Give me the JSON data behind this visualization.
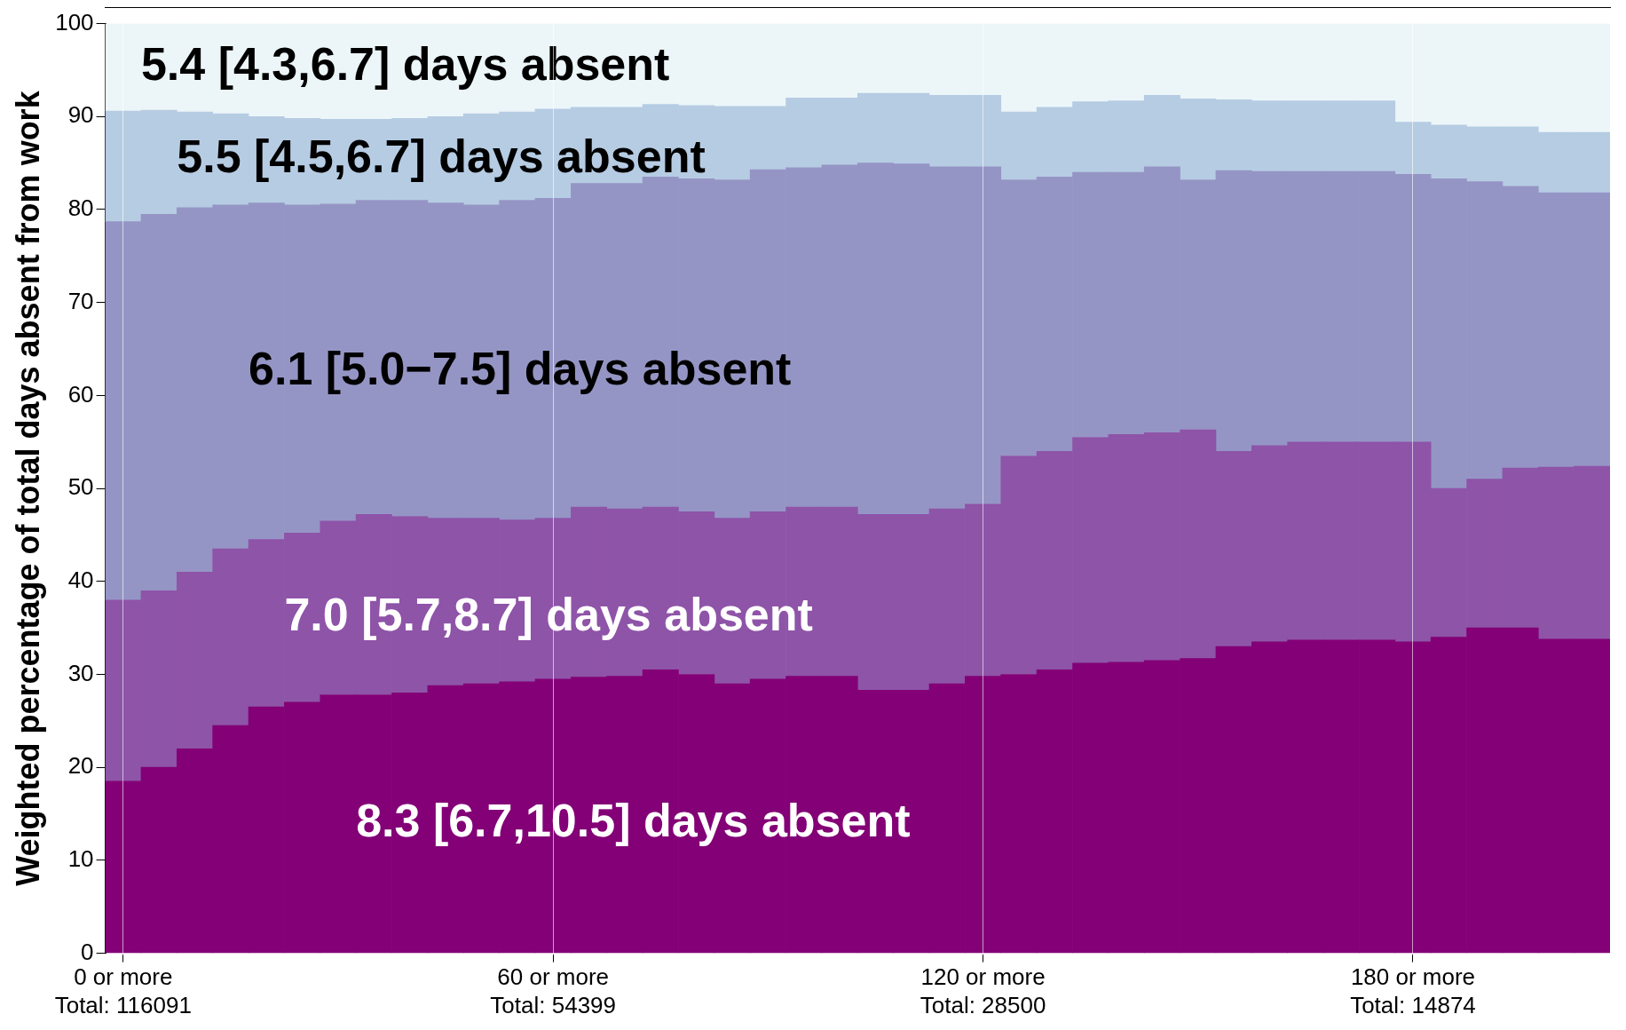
{
  "chart_data": {
    "type": "bar",
    "stacked": true,
    "ylabel": "Weighted percentage of total days absent from work",
    "grid": "x",
    "categories": [
      "0 or more\nTotal: 116091",
      null,
      null,
      null,
      null,
      null,
      null,
      null,
      null,
      null,
      null,
      null,
      "60 or more\nTotal: 54399",
      null,
      null,
      null,
      null,
      null,
      null,
      null,
      null,
      null,
      null,
      null,
      "120 or more\nTotal: 28500",
      null,
      null,
      null,
      null,
      null,
      null,
      null,
      null,
      null,
      null,
      null,
      "180 or more\nTotal: 14874",
      null,
      null,
      null,
      null,
      null
    ],
    "ylim": [
      0,
      100
    ],
    "yticks": [
      0,
      10,
      20,
      30,
      40,
      50,
      60,
      70,
      80,
      90,
      100
    ],
    "series": [
      {
        "name": "8.3 [6.7,10.5] days absent",
        "color": "#830076",
        "values": [
          18.5,
          20,
          22,
          24.5,
          26.5,
          27,
          27.8,
          27.8,
          28,
          28.8,
          29,
          29.2,
          29.5,
          29.7,
          29.8,
          30.5,
          30,
          29,
          29.5,
          29.8,
          29.8,
          28.3,
          28.3,
          29,
          29.8,
          30,
          30.5,
          31.2,
          31.3,
          31.5,
          31.7,
          33,
          33.5,
          33.7,
          33.7,
          33.7,
          33.5,
          34,
          35,
          35,
          33.8,
          33.8
        ]
      },
      {
        "name": "7.0 [5.7,8.7] days absent",
        "color": "#8e54a8",
        "values": [
          19.5,
          19,
          19,
          19,
          18,
          18.2,
          18.7,
          19.4,
          19,
          18,
          17.8,
          17.4,
          17.3,
          18.3,
          18,
          17.5,
          17.5,
          17.8,
          18,
          18.2,
          18.2,
          18.9,
          18.9,
          18.8,
          18.5,
          23.5,
          23.5,
          24.3,
          24.5,
          24.5,
          24.6,
          21,
          21.1,
          21.3,
          21.3,
          21.3,
          21.5,
          16,
          16,
          17.2,
          18.5,
          18.6
        ]
      },
      {
        "name": "6.1 [5.0−7.5] days absent",
        "color": "#9595c5",
        "values": [
          40.7,
          40.5,
          39.2,
          37,
          36.2,
          35.3,
          34.1,
          33.8,
          34,
          33.9,
          33.7,
          34.4,
          34.4,
          34.8,
          35,
          35.5,
          35.8,
          36.4,
          36.8,
          36.5,
          36.8,
          37.8,
          37.7,
          36.8,
          36.3,
          29.7,
          29.5,
          28.5,
          28.2,
          28.6,
          26.9,
          30.2,
          29.5,
          29.1,
          29.1,
          29.1,
          28.8,
          33.3,
          32,
          30.3,
          29.5,
          29.4
        ]
      },
      {
        "name": "5.5 [4.5,6.7] days absent",
        "color": "#b6cce3",
        "values": [
          11.9,
          11.2,
          10.3,
          9.8,
          9.3,
          9.3,
          9.1,
          8.7,
          8.8,
          9.3,
          9.8,
          9.5,
          9.6,
          8.2,
          8.2,
          7.8,
          7.9,
          7.9,
          6.8,
          7.5,
          7.2,
          7.5,
          7.6,
          7.7,
          7.7,
          7.3,
          7.5,
          7.6,
          7.7,
          7.7,
          8.7,
          7.6,
          7.6,
          7.6,
          7.6,
          7.6,
          5.6,
          5.8,
          5.9,
          6.4,
          6.5,
          6.5
        ]
      },
      {
        "name": "5.4 [4.3,6.7] days absent",
        "color": "#ecf6f9",
        "values": [
          9.4,
          9.3,
          9.5,
          9.7,
          10,
          10.2,
          10.3,
          10.3,
          10.2,
          10,
          9.7,
          9.5,
          9.2,
          9,
          9,
          8.7,
          8.8,
          8.9,
          8.9,
          8,
          8,
          7.5,
          7.5,
          7.7,
          7.7,
          9.5,
          9,
          8.4,
          8.3,
          7.7,
          8.1,
          8.2,
          8.3,
          8.3,
          8.3,
          8.3,
          10.6,
          10.9,
          11.1,
          11.1,
          11.7,
          11.7
        ]
      }
    ]
  }
}
